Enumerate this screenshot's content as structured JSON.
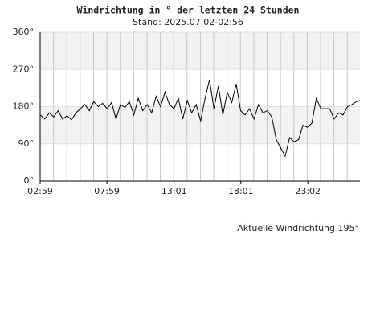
{
  "chart_data": {
    "type": "line",
    "title": "Windrichtung in ° der letzten 24 Stunden",
    "subtitle": "Stand: 2025.07.02-02:56",
    "annotation": "Aktuelle Windrichtung 195°",
    "x": [
      "02:59",
      "03:20",
      "03:40",
      "04:00",
      "04:20",
      "04:40",
      "05:00",
      "05:20",
      "05:40",
      "06:00",
      "06:20",
      "06:40",
      "07:00",
      "07:20",
      "07:40",
      "08:00",
      "08:20",
      "08:40",
      "09:00",
      "09:20",
      "09:40",
      "10:00",
      "10:20",
      "10:40",
      "11:00",
      "11:20",
      "11:40",
      "12:00",
      "12:20",
      "12:40",
      "13:00",
      "13:20",
      "13:40",
      "14:00",
      "14:20",
      "14:40",
      "15:00",
      "15:20",
      "15:40",
      "16:00",
      "16:20",
      "16:40",
      "17:00",
      "17:20",
      "17:40",
      "18:00",
      "18:20",
      "18:40",
      "19:00",
      "19:20",
      "19:40",
      "20:00",
      "20:20",
      "20:40",
      "21:00",
      "21:20",
      "21:40",
      "22:00",
      "22:20",
      "22:40",
      "23:00",
      "23:20",
      "23:40",
      "00:00",
      "00:20",
      "00:40",
      "01:00",
      "01:20",
      "01:40",
      "02:00",
      "02:20",
      "02:40",
      "02:56"
    ],
    "series": [
      {
        "name": "Windrichtung",
        "color": "#000000",
        "values": [
          160,
          150,
          165,
          155,
          170,
          150,
          158,
          148,
          165,
          175,
          185,
          170,
          192,
          180,
          188,
          175,
          190,
          150,
          185,
          178,
          192,
          160,
          200,
          170,
          185,
          165,
          205,
          180,
          215,
          185,
          175,
          200,
          150,
          195,
          165,
          185,
          145,
          200,
          245,
          175,
          230,
          160,
          215,
          190,
          235,
          170,
          160,
          175,
          150,
          185,
          165,
          170,
          155,
          100,
          80,
          60,
          105,
          95,
          100,
          135,
          130,
          140,
          200,
          175,
          175,
          175,
          150,
          165,
          160,
          180,
          185,
          192,
          195
        ]
      }
    ],
    "xlim": [
      "02:59",
      "02:56"
    ],
    "xticks": [
      "02:59",
      "07:59",
      "13:01",
      "18:01",
      "23:02"
    ],
    "ylim": [
      0,
      360
    ],
    "yticks": [
      {
        "value": 0,
        "label": "0°"
      },
      {
        "value": 90,
        "label": "90°"
      },
      {
        "value": 180,
        "label": "180°"
      },
      {
        "value": 270,
        "label": "270°"
      },
      {
        "value": 360,
        "label": "360°"
      }
    ],
    "grid": true
  }
}
